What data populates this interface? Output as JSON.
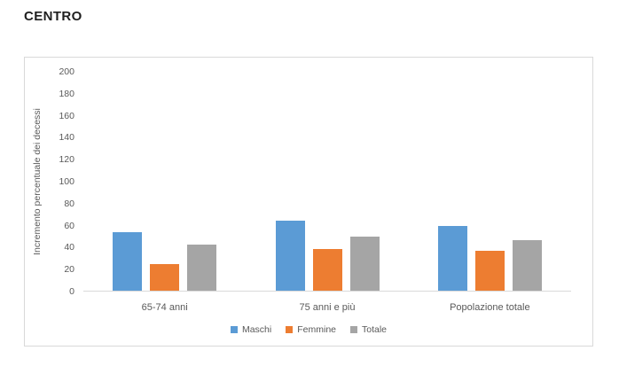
{
  "chart_data": {
    "type": "bar",
    "title": "CENTRO",
    "categories": [
      "65-74 anni",
      "75 anni e più",
      "Popolazione totale"
    ],
    "series": [
      {
        "name": "Maschi",
        "color": "#5B9BD5",
        "values": [
          53,
          64,
          59
        ]
      },
      {
        "name": "Femmine",
        "color": "#ED7D31",
        "values": [
          24,
          38,
          36
        ]
      },
      {
        "name": "Totale",
        "color": "#A5A5A5",
        "values": [
          42,
          49,
          46
        ]
      }
    ],
    "xlabel": "",
    "ylabel": "Incremento percentuale dei decessi",
    "ylim": [
      0,
      200
    ],
    "ytick_step": 20,
    "grid": false,
    "legend_position": "bottom"
  },
  "style": {
    "axis_text_color": "#595959",
    "axis_line_color": "#D9D9D9",
    "frame_border_color": "#D9D9D9",
    "background": "#FFFFFF"
  }
}
